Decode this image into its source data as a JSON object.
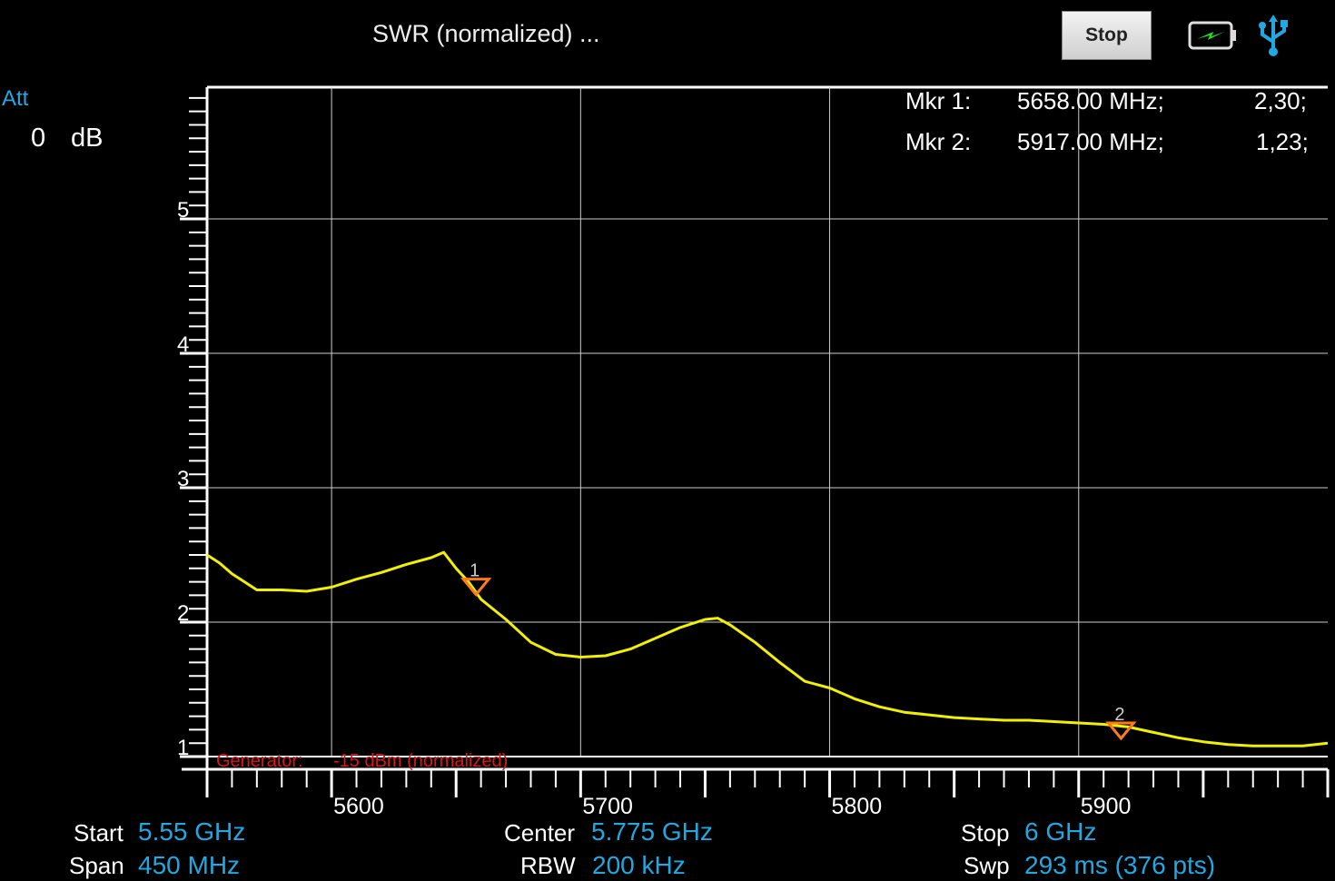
{
  "header": {
    "title": "SWR (normalized) ...",
    "stop_label": "Stop",
    "battery_icon": "battery-charging-icon",
    "usb_icon": "usb-icon",
    "accent_color": "#22a8e0"
  },
  "attenuation": {
    "label": "Att",
    "value": "0",
    "unit": "dB"
  },
  "markers": [
    {
      "label": "Mkr 1:",
      "freq": "5658.00 MHz;",
      "value": "2,30;",
      "id": "1",
      "x": 5658,
      "y": 2.3
    },
    {
      "label": "Mkr 2:",
      "freq": "5917.00 MHz;",
      "value": "1,23;",
      "id": "2",
      "x": 5917,
      "y": 1.23
    }
  ],
  "generator": {
    "label": "Generator:",
    "value": "-15 dBm (normalized)"
  },
  "footer": {
    "start_label": "Start",
    "start_value": "5.55 GHz",
    "span_label": "Span",
    "span_value": "450 MHz",
    "center_label": "Center",
    "center_value": "5.775 GHz",
    "rbw_label": "RBW",
    "rbw_value": "200 kHz",
    "stop_label": "Stop",
    "stop_value": "6 GHz",
    "swp_label": "Swp",
    "swp_value": "293  ms (376 pts)"
  },
  "chart_data": {
    "type": "line",
    "xlim": [
      5550,
      6000
    ],
    "ylim": [
      1,
      6
    ],
    "grid": true,
    "x_ticks": [
      5600,
      5700,
      5800,
      5900
    ],
    "y_ticks": [
      1,
      2,
      3,
      4,
      5
    ],
    "line_color": "#f0f000",
    "series": [
      {
        "x": [
          5550,
          5555,
          5560,
          5570,
          5580,
          5590,
          5600,
          5610,
          5620,
          5630,
          5640,
          5645,
          5650,
          5655,
          5660,
          5670,
          5680,
          5690,
          5700,
          5710,
          5720,
          5730,
          5740,
          5750,
          5755,
          5760,
          5770,
          5780,
          5790,
          5800,
          5810,
          5820,
          5830,
          5840,
          5850,
          5860,
          5870,
          5880,
          5890,
          5900,
          5910,
          5920,
          5930,
          5940,
          5950,
          5960,
          5970,
          5980,
          5990,
          6000
        ],
        "y": [
          2.5,
          2.44,
          2.36,
          2.24,
          2.24,
          2.23,
          2.26,
          2.32,
          2.37,
          2.43,
          2.48,
          2.52,
          2.4,
          2.3,
          2.17,
          2.02,
          1.85,
          1.76,
          1.74,
          1.75,
          1.8,
          1.88,
          1.96,
          2.02,
          2.03,
          1.98,
          1.85,
          1.7,
          1.56,
          1.51,
          1.43,
          1.37,
          1.33,
          1.31,
          1.29,
          1.28,
          1.27,
          1.27,
          1.26,
          1.25,
          1.24,
          1.22,
          1.18,
          1.14,
          1.11,
          1.09,
          1.08,
          1.08,
          1.08,
          1.1
        ]
      }
    ]
  }
}
